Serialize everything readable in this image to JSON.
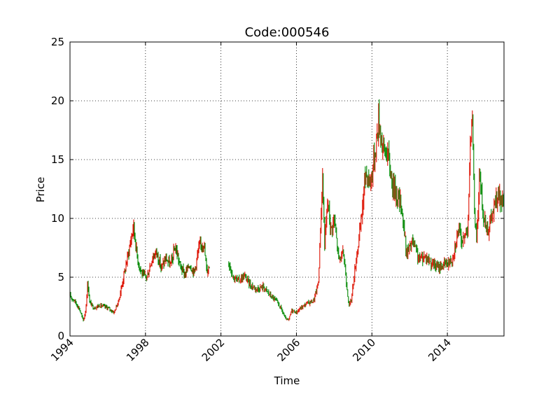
{
  "chart_data": {
    "type": "candlestick",
    "title": "Code:000546",
    "xlabel": "Time",
    "ylabel": "Price",
    "xlim": [
      "1994-01-01",
      "2017-01-01"
    ],
    "ylim": [
      0,
      25
    ],
    "x_ticks": [
      "1994",
      "1998",
      "2002",
      "2006",
      "2010",
      "2014"
    ],
    "y_ticks": [
      "0",
      "5",
      "10",
      "15",
      "20",
      "25"
    ],
    "grid": true,
    "colors": {
      "up": "#dd1100",
      "down": "#008800"
    },
    "price_path": [
      [
        "1994-01-01",
        3.4
      ],
      [
        "1994-04-01",
        3.0
      ],
      [
        "1994-07-01",
        2.3
      ],
      [
        "1994-09-15",
        1.3
      ],
      [
        "1994-11-01",
        2.2
      ],
      [
        "1994-12-10",
        4.6
      ],
      [
        "1995-01-15",
        2.9
      ],
      [
        "1995-04-01",
        2.4
      ],
      [
        "1995-08-01",
        2.6
      ],
      [
        "1996-01-01",
        2.4
      ],
      [
        "1996-05-01",
        2.0
      ],
      [
        "1996-08-01",
        3.0
      ],
      [
        "1996-11-01",
        5.0
      ],
      [
        "1997-02-01",
        7.0
      ],
      [
        "1997-05-15",
        9.4
      ],
      [
        "1997-08-01",
        6.5
      ],
      [
        "1997-11-01",
        5.2
      ],
      [
        "1998-02-01",
        5.0
      ],
      [
        "1998-05-01",
        6.5
      ],
      [
        "1998-08-01",
        7.2
      ],
      [
        "1998-11-01",
        5.8
      ],
      [
        "1999-02-01",
        6.6
      ],
      [
        "1999-05-01",
        6.0
      ],
      [
        "1999-08-01",
        7.6
      ],
      [
        "1999-11-01",
        6.0
      ],
      [
        "2000-02-01",
        5.2
      ],
      [
        "2000-05-01",
        6.1
      ],
      [
        "2000-08-01",
        5.4
      ],
      [
        "2000-11-01",
        7.5
      ],
      [
        "2001-02-01",
        8.0
      ],
      [
        "2001-04-01",
        5.5
      ],
      [
        "2001-06-01",
        6.0
      ]
    ],
    "price_path_2": [
      [
        "2002-06-01",
        6.3
      ],
      [
        "2002-09-01",
        5.0
      ],
      [
        "2002-12-01",
        4.7
      ],
      [
        "2003-04-01",
        5.1
      ],
      [
        "2003-08-01",
        4.3
      ],
      [
        "2003-12-01",
        4.0
      ],
      [
        "2004-04-01",
        4.2
      ],
      [
        "2004-08-01",
        3.5
      ],
      [
        "2004-12-01",
        3.0
      ],
      [
        "2005-03-01",
        2.4
      ],
      [
        "2005-06-01",
        1.5
      ],
      [
        "2005-08-01",
        1.3
      ],
      [
        "2005-10-01",
        2.2
      ],
      [
        "2006-01-01",
        2.0
      ],
      [
        "2006-04-01",
        2.4
      ],
      [
        "2006-08-01",
        2.8
      ],
      [
        "2006-12-01",
        3.0
      ],
      [
        "2007-03-01",
        4.5
      ],
      [
        "2007-05-20",
        13.5
      ],
      [
        "2007-07-01",
        8.0
      ],
      [
        "2007-09-01",
        11.5
      ],
      [
        "2007-11-01",
        9.0
      ],
      [
        "2008-01-01",
        10.0
      ],
      [
        "2008-04-01",
        6.5
      ],
      [
        "2008-07-01",
        7.0
      ],
      [
        "2008-10-15",
        2.5
      ],
      [
        "2008-12-01",
        3.2
      ],
      [
        "2009-03-01",
        6.5
      ],
      [
        "2009-06-01",
        9.5
      ],
      [
        "2009-09-01",
        14.0
      ],
      [
        "2009-12-01",
        13.0
      ],
      [
        "2010-03-01",
        15.5
      ],
      [
        "2010-05-15",
        18.5
      ],
      [
        "2010-08-01",
        16.0
      ],
      [
        "2010-11-01",
        15.5
      ],
      [
        "2011-02-01",
        13.0
      ],
      [
        "2011-05-01",
        12.0
      ],
      [
        "2011-08-01",
        11.0
      ],
      [
        "2011-11-01",
        7.0
      ],
      [
        "2012-03-01",
        8.0
      ],
      [
        "2012-07-01",
        6.5
      ],
      [
        "2012-11-01",
        6.8
      ],
      [
        "2013-03-01",
        6.2
      ],
      [
        "2013-07-01",
        5.8
      ],
      [
        "2013-10-01",
        6.0
      ],
      [
        "2014-01-01",
        6.2
      ],
      [
        "2014-04-01",
        6.5
      ],
      [
        "2014-08-01",
        9.0
      ],
      [
        "2014-11-01",
        8.0
      ],
      [
        "2015-02-01",
        9.5
      ],
      [
        "2015-04-20",
        19.5
      ],
      [
        "2015-06-01",
        12.0
      ],
      [
        "2015-07-15",
        8.0
      ],
      [
        "2015-09-15",
        13.5
      ],
      [
        "2015-12-01",
        10.0
      ],
      [
        "2016-03-01",
        9.0
      ],
      [
        "2016-06-01",
        10.5
      ],
      [
        "2016-09-01",
        12.0
      ],
      [
        "2016-12-31",
        11.0
      ]
    ]
  }
}
